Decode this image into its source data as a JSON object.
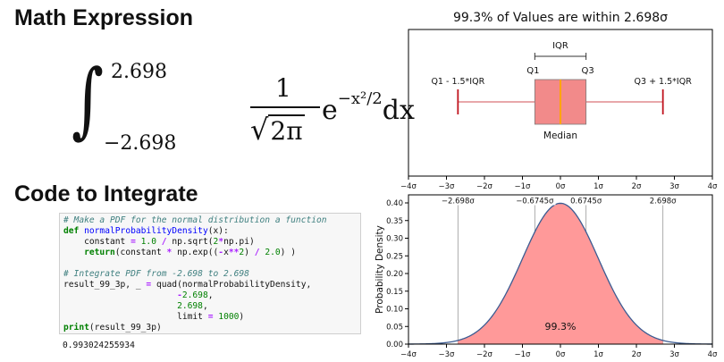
{
  "left": {
    "math_heading": "Math Expression",
    "code_heading": "Code to Integrate",
    "formula": {
      "integral_sign": "∫",
      "upper_limit": "2.698",
      "lower_limit": "−2.698",
      "numerator": "1",
      "denominator_radical": "√",
      "denominator_body": "2π",
      "base": "e",
      "exponent": "−x²/2",
      "differential": "dx"
    },
    "code": {
      "lines": [
        [
          {
            "t": "# Make a PDF for the normal distribution a function",
            "c": "cmt"
          }
        ],
        [
          {
            "t": "def ",
            "c": "kw"
          },
          {
            "t": "normalProbabilityDensity",
            "c": "fn"
          },
          {
            "t": "(x):",
            "c": ""
          }
        ],
        [
          {
            "t": "    constant ",
            "c": ""
          },
          {
            "t": "=",
            "c": "op"
          },
          {
            "t": " ",
            "c": ""
          },
          {
            "t": "1.0",
            "c": "num-t"
          },
          {
            "t": " ",
            "c": ""
          },
          {
            "t": "/",
            "c": "op"
          },
          {
            "t": " np.sqrt(",
            "c": ""
          },
          {
            "t": "2",
            "c": "num-t"
          },
          {
            "t": "*",
            "c": "op"
          },
          {
            "t": "np.pi)",
            "c": ""
          }
        ],
        [
          {
            "t": "    ",
            "c": ""
          },
          {
            "t": "return",
            "c": "kw"
          },
          {
            "t": "(constant ",
            "c": ""
          },
          {
            "t": "*",
            "c": "op"
          },
          {
            "t": " np.exp((",
            "c": ""
          },
          {
            "t": "-",
            "c": "op"
          },
          {
            "t": "x",
            "c": ""
          },
          {
            "t": "**",
            "c": "op"
          },
          {
            "t": "2",
            "c": "num-t"
          },
          {
            "t": ") ",
            "c": ""
          },
          {
            "t": "/",
            "c": "op"
          },
          {
            "t": " ",
            "c": ""
          },
          {
            "t": "2.0",
            "c": "num-t"
          },
          {
            "t": ") )",
            "c": ""
          }
        ],
        [
          {
            "t": "",
            "c": ""
          }
        ],
        [
          {
            "t": "# Integrate PDF from -2.698 to 2.698",
            "c": "cmt"
          }
        ],
        [
          {
            "t": "result_99_3p, _ ",
            "c": ""
          },
          {
            "t": "=",
            "c": "op"
          },
          {
            "t": " quad(normalProbabilityDensity,",
            "c": ""
          }
        ],
        [
          {
            "t": "                      ",
            "c": ""
          },
          {
            "t": "-",
            "c": "op"
          },
          {
            "t": "2.698",
            "c": "num-t"
          },
          {
            "t": ",",
            "c": ""
          }
        ],
        [
          {
            "t": "                      ",
            "c": ""
          },
          {
            "t": "2.698",
            "c": "num-t"
          },
          {
            "t": ",",
            "c": ""
          }
        ],
        [
          {
            "t": "                      limit ",
            "c": ""
          },
          {
            "t": "=",
            "c": "op"
          },
          {
            "t": " ",
            "c": ""
          },
          {
            "t": "1000",
            "c": "num-t"
          },
          {
            "t": ")",
            "c": ""
          }
        ],
        [
          {
            "t": "print",
            "c": "kw"
          },
          {
            "t": "(result_99_3p)",
            "c": ""
          }
        ]
      ],
      "output": "0.993024255934"
    }
  },
  "chart_data": [
    {
      "type": "box",
      "title": "99.3% of Values are within 2.698σ",
      "q1": -0.6745,
      "median": 0,
      "q3": 0.6745,
      "whisker_low": -2.698,
      "whisker_high": 2.698,
      "xlim": [
        -4,
        4
      ],
      "x_ticks": [
        "−4σ",
        "−3σ",
        "−2σ",
        "−1σ",
        "0σ",
        "1σ",
        "2σ",
        "3σ",
        "4σ"
      ],
      "annotations": {
        "iqr": "IQR",
        "q1": "Q1",
        "q3": "Q3",
        "lower_whisker": "Q1 - 1.5*IQR",
        "upper_whisker": "Q3 + 1.5*IQR",
        "median": "Median"
      },
      "colors": {
        "box": "#f28a8a",
        "median": "#ffa500",
        "whisker": "#c0141e"
      }
    },
    {
      "type": "area",
      "curve": "normal pdf",
      "xlim": [
        -4,
        4
      ],
      "ylim": [
        0,
        0.4
      ],
      "ylabel": "Probability Density",
      "y_ticks": [
        0.0,
        0.05,
        0.1,
        0.15,
        0.2,
        0.25,
        0.3,
        0.35,
        0.4
      ],
      "y_tick_labels": [
        "0.00",
        "0.05",
        "0.10",
        "0.15",
        "0.20",
        "0.25",
        "0.30",
        "0.35",
        "0.40"
      ],
      "x_ticks": [
        "−4σ",
        "−3σ",
        "−2σ",
        "−1σ",
        "0σ",
        "1σ",
        "2σ",
        "3σ",
        "4σ"
      ],
      "shaded_range": [
        -2.698,
        2.698
      ],
      "shaded_label": "99.3%",
      "reference_lines": [
        -2.698,
        -0.6745,
        0.6745,
        2.698
      ],
      "reference_labels": [
        "−2.698σ",
        "−0.6745σ",
        "0.6745σ",
        "2.698σ"
      ],
      "colors": {
        "fill": "#f99",
        "line": "#3b5b92",
        "ref": "#999999"
      }
    }
  ]
}
